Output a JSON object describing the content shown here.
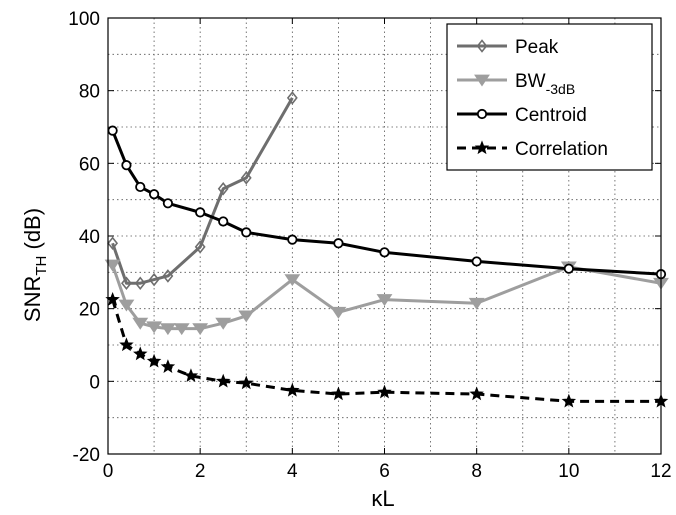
{
  "chart_data": {
    "type": "line",
    "title": "",
    "xlabel": {
      "main": "κL"
    },
    "ylabel": {
      "main": "SNR",
      "sub": "TH",
      "suffix": " (dB)"
    },
    "xlim": [
      0,
      12
    ],
    "ylim": [
      -20,
      100
    ],
    "xticks": [
      "0",
      "2",
      "4",
      "6",
      "8",
      "10",
      "12"
    ],
    "yticks": [
      "-20",
      "0",
      "20",
      "40",
      "60",
      "80",
      "100"
    ],
    "grid": true,
    "legend_position": "top-right",
    "series": [
      {
        "name": "Peak",
        "label_main": "Peak",
        "label_sub": "",
        "color": "#6e6e6e",
        "line_style": "solid",
        "marker": "diamond",
        "x": [
          0.1,
          0.4,
          0.7,
          1.0,
          1.3,
          2.0,
          2.5,
          3.0,
          4.0
        ],
        "y": [
          38,
          27,
          27,
          28,
          29,
          37,
          53,
          56,
          78
        ]
      },
      {
        "name": "BW-3dB",
        "label_main": "BW",
        "label_sub": "-3dB",
        "color": "#9e9e9e",
        "line_style": "solid",
        "marker": "triangle-down",
        "x": [
          0.1,
          0.4,
          0.7,
          1.0,
          1.3,
          1.6,
          2.0,
          2.5,
          3.0,
          4.0,
          5.0,
          6.0,
          8.0,
          10.0,
          12.0
        ],
        "y": [
          32,
          21,
          16,
          15,
          14.5,
          14.5,
          14.5,
          16,
          18,
          28,
          19,
          22.5,
          21.5,
          31.5,
          27
        ]
      },
      {
        "name": "Centroid",
        "label_main": "Centroid",
        "label_sub": "",
        "color": "#000000",
        "line_style": "solid",
        "marker": "circle",
        "x": [
          0.1,
          0.4,
          0.7,
          1.0,
          1.3,
          2.0,
          2.5,
          3.0,
          4.0,
          5.0,
          6.0,
          8.0,
          10.0,
          12.0
        ],
        "y": [
          69,
          59.5,
          53.5,
          51.5,
          49,
          46.5,
          44,
          41,
          39,
          38,
          35.5,
          33,
          31,
          29.5
        ]
      },
      {
        "name": "Correlation",
        "label_main": "Correlation",
        "label_sub": "",
        "color": "#000000",
        "line_style": "dashed",
        "marker": "star",
        "x": [
          0.1,
          0.4,
          0.7,
          1.0,
          1.3,
          1.8,
          2.5,
          3.0,
          4.0,
          5.0,
          6.0,
          8.0,
          10.0,
          12.0
        ],
        "y": [
          22.5,
          10,
          7.5,
          5.5,
          4,
          1.5,
          0,
          -0.5,
          -2.5,
          -3.5,
          -3,
          -3.5,
          -5.5,
          -5.5
        ]
      }
    ]
  }
}
